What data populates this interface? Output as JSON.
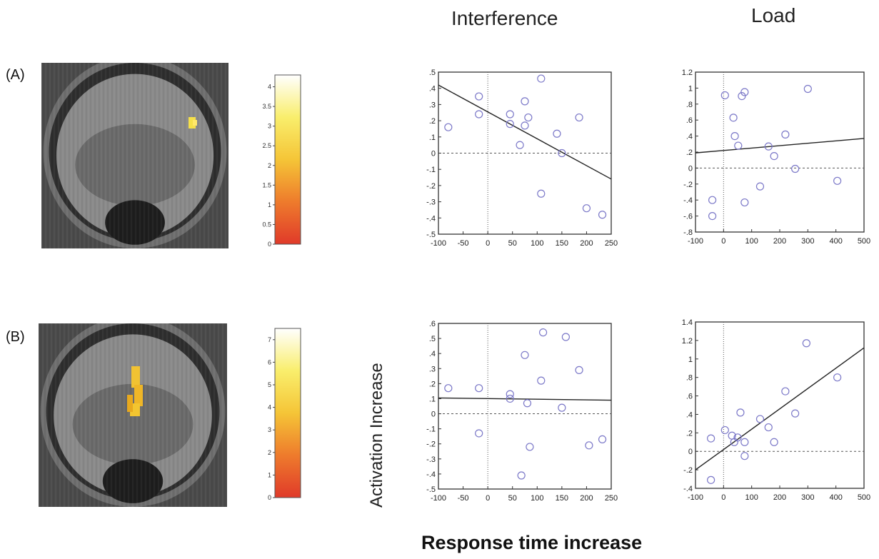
{
  "column_titles": {
    "interference": "Interference",
    "load": "Load"
  },
  "row_labels": {
    "a": "(A)",
    "b": "(B)"
  },
  "y_axis_label": "Activation Increase",
  "x_axis_label": "Response time increase",
  "colorbars": {
    "a": {
      "ticks": [
        "0",
        "0.5",
        "1",
        "1.5",
        "2",
        "2.5",
        "3",
        "3.5",
        "4"
      ],
      "max": 4.3
    },
    "b": {
      "ticks": [
        "0",
        "1",
        "2",
        "3",
        "4",
        "5",
        "6",
        "7"
      ],
      "max": 7.5
    }
  },
  "chart_data": [
    {
      "type": "scatter",
      "panel": "A-Interference",
      "xlim": [
        -100,
        250
      ],
      "ylim": [
        -0.5,
        0.5
      ],
      "xticks": [
        "-100",
        "-50",
        "0",
        "50",
        "100",
        "150",
        "200",
        "250"
      ],
      "yticks": [
        ".5",
        ".4",
        ".3",
        ".2",
        ".1",
        "0",
        "-.1",
        "-.2",
        "-.3",
        "-.4",
        "-.5"
      ],
      "points": [
        [
          -80,
          0.16
        ],
        [
          -18,
          0.35
        ],
        [
          -18,
          0.24
        ],
        [
          45,
          0.24
        ],
        [
          45,
          0.18
        ],
        [
          65,
          0.05
        ],
        [
          75,
          0.32
        ],
        [
          75,
          0.17
        ],
        [
          82,
          0.22
        ],
        [
          108,
          0.46
        ],
        [
          108,
          -0.25
        ],
        [
          140,
          0.12
        ],
        [
          150,
          0.0
        ],
        [
          185,
          0.22
        ],
        [
          200,
          -0.34
        ],
        [
          232,
          -0.38
        ]
      ],
      "fit_line": [
        [
          -100,
          0.42
        ],
        [
          250,
          -0.16
        ]
      ],
      "grid": false
    },
    {
      "type": "scatter",
      "panel": "A-Load",
      "xlim": [
        -100,
        500
      ],
      "ylim": [
        -0.8,
        1.2
      ],
      "xticks": [
        "-100",
        "0",
        "100",
        "200",
        "300",
        "400",
        "500"
      ],
      "yticks": [
        "1.2",
        "1",
        ".8",
        ".6",
        ".4",
        ".2",
        "0",
        "-.2",
        "-.4",
        "-.6",
        "-.8"
      ],
      "points": [
        [
          -40,
          -0.4
        ],
        [
          -40,
          -0.6
        ],
        [
          5,
          0.91
        ],
        [
          35,
          0.63
        ],
        [
          40,
          0.4
        ],
        [
          52,
          0.28
        ],
        [
          65,
          0.9
        ],
        [
          75,
          0.95
        ],
        [
          75,
          -0.43
        ],
        [
          130,
          -0.23
        ],
        [
          160,
          0.27
        ],
        [
          180,
          0.15
        ],
        [
          220,
          0.42
        ],
        [
          255,
          -0.01
        ],
        [
          300,
          0.99
        ],
        [
          405,
          -0.16
        ]
      ],
      "fit_line": [
        [
          -100,
          0.19
        ],
        [
          500,
          0.37
        ]
      ],
      "grid": false
    },
    {
      "type": "scatter",
      "panel": "B-Interference",
      "xlim": [
        -100,
        250
      ],
      "ylim": [
        -0.5,
        0.6
      ],
      "xticks": [
        "-100",
        "-50",
        "0",
        "50",
        "100",
        "150",
        "200",
        "250"
      ],
      "yticks": [
        ".6",
        ".5",
        ".4",
        ".3",
        ".2",
        ".1",
        "0",
        "-.1",
        "-.2",
        "-.3",
        "-.4",
        "-.5"
      ],
      "points": [
        [
          -80,
          0.17
        ],
        [
          -18,
          0.17
        ],
        [
          -18,
          -0.13
        ],
        [
          45,
          0.13
        ],
        [
          45,
          0.1
        ],
        [
          68,
          -0.41
        ],
        [
          75,
          0.39
        ],
        [
          80,
          0.07
        ],
        [
          85,
          -0.22
        ],
        [
          108,
          0.22
        ],
        [
          112,
          0.54
        ],
        [
          150,
          0.04
        ],
        [
          158,
          0.51
        ],
        [
          185,
          0.29
        ],
        [
          205,
          -0.21
        ],
        [
          232,
          -0.17
        ]
      ],
      "fit_line": [
        [
          -100,
          0.105
        ],
        [
          250,
          0.09
        ]
      ],
      "grid": false
    },
    {
      "type": "scatter",
      "panel": "B-Load",
      "xlim": [
        -100,
        500
      ],
      "ylim": [
        -0.4,
        1.4
      ],
      "xticks": [
        "-100",
        "0",
        "100",
        "200",
        "300",
        "400",
        "500"
      ],
      "yticks": [
        "1.4",
        "1.2",
        "1",
        ".8",
        ".6",
        ".4",
        ".2",
        "0",
        "-.2",
        "-.4"
      ],
      "points": [
        [
          -45,
          0.14
        ],
        [
          -45,
          -0.31
        ],
        [
          5,
          0.23
        ],
        [
          30,
          0.17
        ],
        [
          38,
          0.1
        ],
        [
          50,
          0.15
        ],
        [
          60,
          0.42
        ],
        [
          75,
          0.1
        ],
        [
          75,
          -0.05
        ],
        [
          130,
          0.35
        ],
        [
          160,
          0.26
        ],
        [
          180,
          0.1
        ],
        [
          220,
          0.65
        ],
        [
          255,
          0.41
        ],
        [
          295,
          1.17
        ],
        [
          405,
          0.8
        ]
      ],
      "fit_line": [
        [
          -100,
          -0.2
        ],
        [
          500,
          1.12
        ]
      ],
      "grid": false
    }
  ]
}
